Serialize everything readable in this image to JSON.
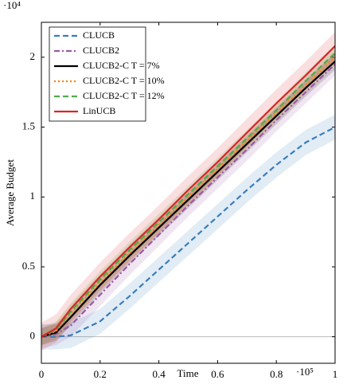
{
  "chart_data": {
    "type": "line",
    "x_label": "Time",
    "y_label": "Average Budget",
    "x_multiplier": "·10⁵",
    "y_multiplier": "·10⁴",
    "x": [
      0,
      0.05,
      0.1,
      0.2,
      0.3,
      0.4,
      0.5,
      0.6,
      0.7,
      0.8,
      0.9,
      1
    ],
    "series": [
      {
        "name": "CLUCB",
        "color": "#3a7dbf",
        "dash": "dashed",
        "band": 0.09,
        "values": [
          0,
          0,
          0.01,
          0.11,
          0.29,
          0.48,
          0.67,
          0.86,
          1.05,
          1.23,
          1.39,
          1.5
        ]
      },
      {
        "name": "CLUCB2",
        "color": "#9b59a6",
        "dash": "dashdot",
        "band": 0.08,
        "values": [
          0,
          0.02,
          0.08,
          0.3,
          0.52,
          0.73,
          0.94,
          1.14,
          1.34,
          1.55,
          1.75,
          1.95
        ]
      },
      {
        "name": "CLUCB2-C T = 7%",
        "color": "#000000",
        "dash": "solid",
        "band": 0.06,
        "values": [
          0,
          0.03,
          0.14,
          0.37,
          0.58,
          0.78,
          0.98,
          1.18,
          1.38,
          1.58,
          1.78,
          1.97
        ]
      },
      {
        "name": "CLUCB2-C T = 10%",
        "color": "#ff7f0e",
        "dash": "dotted",
        "band": 0.06,
        "values": [
          0,
          0.04,
          0.17,
          0.39,
          0.6,
          0.8,
          1.0,
          1.2,
          1.4,
          1.6,
          1.8,
          2.0
        ]
      },
      {
        "name": "CLUCB2-C T = 12%",
        "color": "#4daa4d",
        "dash": "dashed",
        "band": 0.06,
        "values": [
          0,
          0.05,
          0.18,
          0.41,
          0.62,
          0.82,
          1.02,
          1.22,
          1.42,
          1.62,
          1.83,
          2.03
        ]
      },
      {
        "name": "LinUCB",
        "color": "#d62728",
        "dash": "solid",
        "band": 0.1,
        "values": [
          0,
          0.06,
          0.2,
          0.43,
          0.64,
          0.84,
          1.05,
          1.25,
          1.46,
          1.67,
          1.87,
          2.08
        ]
      }
    ],
    "xlim": [
      0,
      1
    ],
    "xticks": [
      0,
      0.2,
      0.4,
      0.6,
      0.8,
      1
    ],
    "ylim": [
      -0.19,
      2.25
    ],
    "yticks": [
      0,
      0.5,
      1,
      1.5,
      2
    ],
    "zero_line": true,
    "legend": "upper-left"
  }
}
